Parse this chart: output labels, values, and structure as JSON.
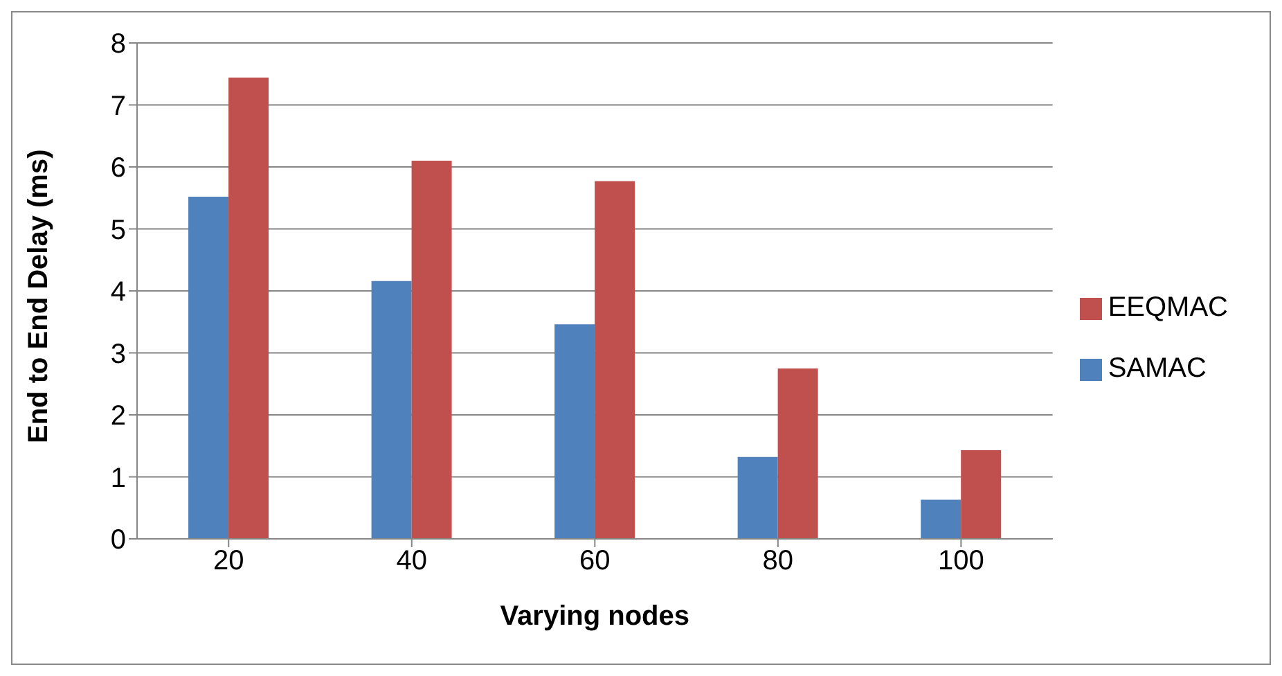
{
  "chart_data": {
    "type": "bar",
    "xlabel": "Varying nodes",
    "ylabel": "End to End Delay (ms)",
    "categories": [
      "20",
      "40",
      "60",
      "80",
      "100"
    ],
    "series": [
      {
        "name": "SAMAC",
        "color": "#4f81bd",
        "values": [
          5.52,
          4.16,
          3.46,
          1.32,
          0.63
        ]
      },
      {
        "name": "EEQMAC",
        "color": "#c0504d",
        "values": [
          7.44,
          6.1,
          5.77,
          2.75,
          1.43
        ]
      }
    ],
    "ylim": [
      0,
      8
    ],
    "yticks": [
      0,
      1,
      2,
      3,
      4,
      5,
      6,
      7,
      8
    ],
    "grid": "y",
    "legend": "right"
  }
}
